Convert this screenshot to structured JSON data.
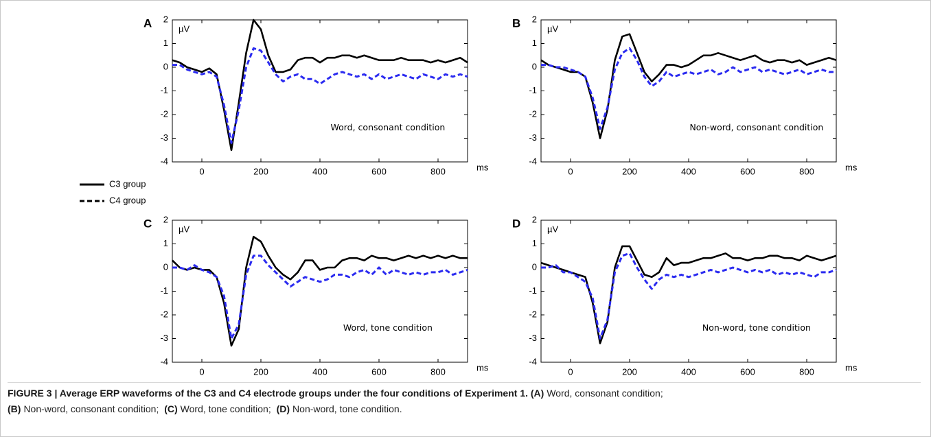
{
  "chart_data": [
    {
      "type": "line",
      "panel_label": "A",
      "y_unit": "µV",
      "x_unit": "ms",
      "annotation": "Word, consonant condition",
      "x": [
        -100,
        -75,
        -50,
        -25,
        0,
        25,
        50,
        75,
        100,
        125,
        150,
        175,
        200,
        225,
        250,
        275,
        300,
        325,
        350,
        375,
        400,
        425,
        450,
        475,
        500,
        525,
        550,
        575,
        600,
        625,
        650,
        675,
        700,
        725,
        750,
        775,
        800,
        825,
        850,
        875,
        900
      ],
      "xlim": [
        -100,
        900
      ],
      "ylim": [
        -4,
        2
      ],
      "xticks": [
        0,
        200,
        400,
        600,
        800
      ],
      "yticks": [
        -4,
        -3,
        -2,
        -1,
        0,
        1,
        2
      ],
      "series": [
        {
          "color": "#000000",
          "style": "solid",
          "values": [
            0.3,
            0.2,
            0.0,
            -0.1,
            -0.2,
            -0.05,
            -0.3,
            -1.8,
            -3.5,
            -1.5,
            0.6,
            2.0,
            1.6,
            0.5,
            -0.2,
            -0.2,
            -0.1,
            0.3,
            0.4,
            0.4,
            0.2,
            0.4,
            0.4,
            0.5,
            0.5,
            0.4,
            0.5,
            0.4,
            0.3,
            0.3,
            0.3,
            0.4,
            0.3,
            0.3,
            0.3,
            0.2,
            0.3,
            0.2,
            0.3,
            0.4,
            0.2
          ]
        },
        {
          "color": "#2b2bf0",
          "style": "dashed",
          "values": [
            0.1,
            0.1,
            -0.1,
            -0.2,
            -0.3,
            -0.2,
            -0.4,
            -1.6,
            -3.2,
            -1.8,
            0.0,
            0.8,
            0.7,
            0.2,
            -0.3,
            -0.6,
            -0.4,
            -0.3,
            -0.5,
            -0.5,
            -0.7,
            -0.5,
            -0.3,
            -0.2,
            -0.3,
            -0.4,
            -0.3,
            -0.5,
            -0.3,
            -0.5,
            -0.4,
            -0.3,
            -0.4,
            -0.5,
            -0.3,
            -0.4,
            -0.5,
            -0.3,
            -0.4,
            -0.3,
            -0.4
          ]
        }
      ]
    },
    {
      "type": "line",
      "panel_label": "B",
      "y_unit": "µV",
      "x_unit": "ms",
      "annotation": "Non-word, consonant condition",
      "x": [
        -100,
        -75,
        -50,
        -25,
        0,
        25,
        50,
        75,
        100,
        125,
        150,
        175,
        200,
        225,
        250,
        275,
        300,
        325,
        350,
        375,
        400,
        425,
        450,
        475,
        500,
        525,
        550,
        575,
        600,
        625,
        650,
        675,
        700,
        725,
        750,
        775,
        800,
        825,
        850,
        875,
        900
      ],
      "xlim": [
        -100,
        900
      ],
      "ylim": [
        -4,
        2
      ],
      "xticks": [
        0,
        200,
        400,
        600,
        800
      ],
      "yticks": [
        -4,
        -3,
        -2,
        -1,
        0,
        1,
        2
      ],
      "series": [
        {
          "color": "#000000",
          "style": "solid",
          "values": [
            0.3,
            0.1,
            0.0,
            -0.1,
            -0.2,
            -0.2,
            -0.4,
            -1.5,
            -3.0,
            -1.8,
            0.3,
            1.3,
            1.4,
            0.6,
            -0.2,
            -0.6,
            -0.3,
            0.1,
            0.1,
            0.0,
            0.1,
            0.3,
            0.5,
            0.5,
            0.6,
            0.5,
            0.4,
            0.3,
            0.4,
            0.5,
            0.3,
            0.2,
            0.3,
            0.3,
            0.2,
            0.3,
            0.1,
            0.2,
            0.3,
            0.4,
            0.3
          ]
        },
        {
          "color": "#2b2bf0",
          "style": "dashed",
          "values": [
            0.1,
            0.1,
            0.0,
            0.0,
            -0.1,
            -0.2,
            -0.4,
            -1.3,
            -2.6,
            -1.7,
            -0.1,
            0.6,
            0.8,
            0.3,
            -0.4,
            -0.8,
            -0.6,
            -0.2,
            -0.4,
            -0.3,
            -0.2,
            -0.3,
            -0.2,
            -0.1,
            -0.3,
            -0.2,
            0.0,
            -0.2,
            -0.1,
            0.0,
            -0.2,
            -0.1,
            -0.2,
            -0.3,
            -0.2,
            -0.1,
            -0.3,
            -0.2,
            -0.1,
            -0.2,
            -0.2
          ]
        }
      ]
    },
    {
      "type": "line",
      "panel_label": "C",
      "y_unit": "µV",
      "x_unit": "ms",
      "annotation": "Word, tone condition",
      "x": [
        -100,
        -75,
        -50,
        -25,
        0,
        25,
        50,
        75,
        100,
        125,
        150,
        175,
        200,
        225,
        250,
        275,
        300,
        325,
        350,
        375,
        400,
        425,
        450,
        475,
        500,
        525,
        550,
        575,
        600,
        625,
        650,
        675,
        700,
        725,
        750,
        775,
        800,
        825,
        850,
        875,
        900
      ],
      "xlim": [
        -100,
        900
      ],
      "ylim": [
        -4,
        2
      ],
      "xticks": [
        0,
        200,
        400,
        600,
        800
      ],
      "yticks": [
        -4,
        -3,
        -2,
        -1,
        0,
        1,
        2
      ],
      "series": [
        {
          "color": "#000000",
          "style": "solid",
          "values": [
            0.3,
            0.0,
            -0.1,
            0.0,
            -0.1,
            -0.1,
            -0.4,
            -1.5,
            -3.3,
            -2.6,
            0.0,
            1.3,
            1.1,
            0.5,
            0.0,
            -0.3,
            -0.5,
            -0.2,
            0.3,
            0.3,
            -0.1,
            0.0,
            0.0,
            0.3,
            0.4,
            0.4,
            0.3,
            0.5,
            0.4,
            0.4,
            0.3,
            0.4,
            0.5,
            0.4,
            0.5,
            0.4,
            0.5,
            0.4,
            0.5,
            0.4,
            0.4
          ]
        },
        {
          "color": "#2b2bf0",
          "style": "dashed",
          "values": [
            0.0,
            0.0,
            -0.1,
            0.1,
            -0.1,
            -0.2,
            -0.4,
            -1.2,
            -3.0,
            -2.4,
            -0.3,
            0.5,
            0.5,
            0.1,
            -0.2,
            -0.5,
            -0.8,
            -0.6,
            -0.4,
            -0.5,
            -0.6,
            -0.5,
            -0.3,
            -0.3,
            -0.4,
            -0.2,
            -0.1,
            -0.3,
            0.0,
            -0.3,
            -0.1,
            -0.2,
            -0.3,
            -0.2,
            -0.3,
            -0.2,
            -0.2,
            -0.1,
            -0.3,
            -0.2,
            -0.1
          ]
        }
      ]
    },
    {
      "type": "line",
      "panel_label": "D",
      "y_unit": "µV",
      "x_unit": "ms",
      "annotation": "Non-word, tone condition",
      "x": [
        -100,
        -75,
        -50,
        -25,
        0,
        25,
        50,
        75,
        100,
        125,
        150,
        175,
        200,
        225,
        250,
        275,
        300,
        325,
        350,
        375,
        400,
        425,
        450,
        475,
        500,
        525,
        550,
        575,
        600,
        625,
        650,
        675,
        700,
        725,
        750,
        775,
        800,
        825,
        850,
        875,
        900
      ],
      "xlim": [
        -100,
        900
      ],
      "ylim": [
        -4,
        2
      ],
      "xticks": [
        0,
        200,
        400,
        600,
        800
      ],
      "yticks": [
        -4,
        -3,
        -2,
        -1,
        0,
        1,
        2
      ],
      "series": [
        {
          "color": "#000000",
          "style": "solid",
          "values": [
            0.2,
            0.1,
            0.0,
            -0.1,
            -0.2,
            -0.3,
            -0.4,
            -1.5,
            -3.2,
            -2.3,
            0.0,
            0.9,
            0.9,
            0.3,
            -0.3,
            -0.4,
            -0.2,
            0.4,
            0.1,
            0.2,
            0.2,
            0.3,
            0.4,
            0.4,
            0.5,
            0.6,
            0.4,
            0.4,
            0.3,
            0.4,
            0.4,
            0.5,
            0.5,
            0.4,
            0.4,
            0.3,
            0.5,
            0.4,
            0.3,
            0.4,
            0.5
          ]
        },
        {
          "color": "#2b2bf0",
          "style": "dashed",
          "values": [
            0.0,
            0.0,
            0.1,
            -0.2,
            -0.2,
            -0.4,
            -0.6,
            -1.3,
            -3.0,
            -2.2,
            -0.2,
            0.5,
            0.6,
            0.0,
            -0.5,
            -0.9,
            -0.5,
            -0.3,
            -0.4,
            -0.3,
            -0.4,
            -0.3,
            -0.2,
            -0.1,
            -0.2,
            -0.1,
            0.0,
            -0.1,
            -0.2,
            -0.1,
            -0.2,
            -0.1,
            -0.3,
            -0.2,
            -0.3,
            -0.2,
            -0.3,
            -0.4,
            -0.2,
            -0.2,
            -0.1
          ]
        }
      ]
    }
  ],
  "legend": {
    "items": [
      {
        "label": "C3 group",
        "style": "solid"
      },
      {
        "label": "C4 group",
        "style": "dashed"
      }
    ]
  },
  "caption": {
    "title": "FIGURE 3 | Average ERP waveforms of the C3 and C4 electrode groups under the four conditions of Experiment 1.",
    "items": [
      {
        "label": "(A)",
        "text": "Word, consonant condition;"
      },
      {
        "label": "(B)",
        "text": "Non-word, consonant condition;"
      },
      {
        "label": "(C)",
        "text": "Word, tone condition;"
      },
      {
        "label": "(D)",
        "text": "Non-word, tone condition."
      }
    ]
  }
}
